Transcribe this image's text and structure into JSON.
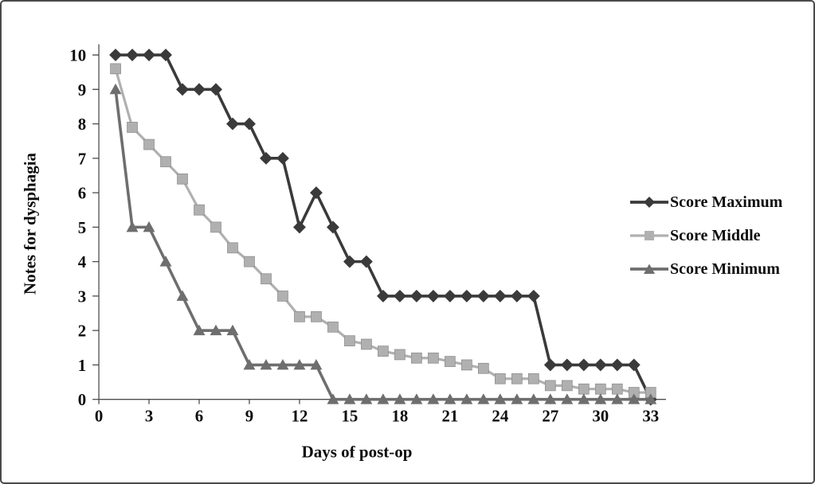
{
  "chart_data": {
    "type": "line",
    "title": "",
    "xlabel": "Days of post-op",
    "ylabel": "Notes for dysphagia",
    "xlim": [
      0,
      33
    ],
    "ylim": [
      0,
      10
    ],
    "x_ticks": [
      0,
      3,
      6,
      9,
      12,
      15,
      18,
      21,
      24,
      27,
      30,
      33
    ],
    "y_ticks": [
      0,
      1,
      2,
      3,
      4,
      5,
      6,
      7,
      8,
      9,
      10
    ],
    "grid": false,
    "legend_position": "right",
    "axis_color": "#4d4d4d",
    "text_color": "#0d0d0d",
    "x": [
      1,
      2,
      3,
      4,
      5,
      6,
      7,
      8,
      9,
      10,
      11,
      12,
      13,
      14,
      15,
      16,
      17,
      18,
      19,
      20,
      21,
      22,
      23,
      24,
      25,
      26,
      27,
      28,
      29,
      30,
      31,
      32,
      33
    ],
    "series": [
      {
        "name": "Score Maximum",
        "marker": "diamond",
        "color": "#3a3a3a",
        "values": [
          10,
          10,
          10,
          10,
          9,
          9,
          9,
          8,
          8,
          7,
          7,
          5,
          6,
          5,
          4,
          4,
          3,
          3,
          3,
          3,
          3,
          3,
          3,
          3,
          3,
          3,
          1,
          1,
          1,
          1,
          1,
          1,
          0
        ]
      },
      {
        "name": "Score Middle",
        "marker": "square",
        "color": "#b0b0b0",
        "values": [
          9.6,
          7.9,
          7.4,
          6.9,
          6.4,
          5.5,
          5.0,
          4.4,
          4.0,
          3.5,
          3.0,
          2.4,
          2.4,
          2.1,
          1.7,
          1.6,
          1.4,
          1.3,
          1.2,
          1.2,
          1.1,
          1.0,
          0.9,
          0.6,
          0.6,
          0.6,
          0.4,
          0.4,
          0.3,
          0.3,
          0.3,
          0.2,
          0.2
        ]
      },
      {
        "name": "Score Minimum",
        "marker": "triangle",
        "color": "#6e6e6e",
        "values": [
          9,
          5,
          5,
          4,
          3,
          2,
          2,
          2,
          1,
          1,
          1,
          1,
          1,
          0,
          0,
          0,
          0,
          0,
          0,
          0,
          0,
          0,
          0,
          0,
          0,
          0,
          0,
          0,
          0,
          0,
          0,
          0,
          0
        ]
      }
    ]
  }
}
